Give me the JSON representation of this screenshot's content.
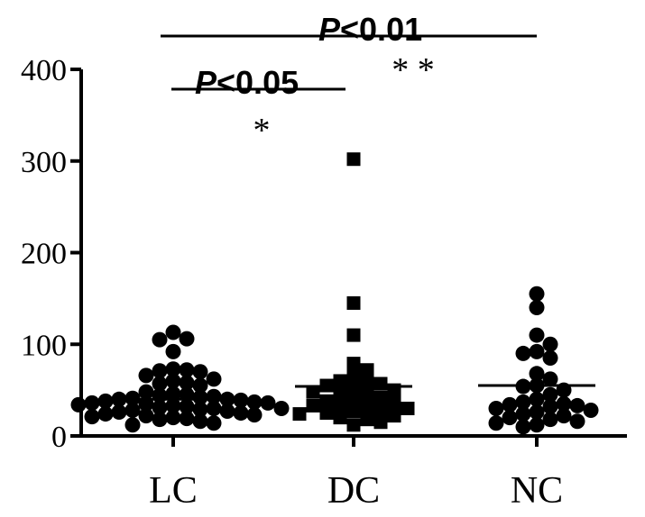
{
  "chart_data": {
    "type": "scatter",
    "title": "",
    "xlabel": "",
    "ylabel": "",
    "ylim": [
      0,
      400
    ],
    "yticks": [
      0,
      100,
      200,
      300,
      400
    ],
    "categories": [
      "LC",
      "DC",
      "NC"
    ],
    "grid": false,
    "legend": "none",
    "series": [
      {
        "category": "LC",
        "marker": "circle",
        "median": 40,
        "values": [
          113,
          105,
          106,
          92,
          72,
          70,
          73,
          71,
          66,
          62,
          58,
          57,
          60,
          55,
          48,
          46,
          45,
          44,
          43,
          42,
          41,
          40,
          40,
          39,
          38,
          37,
          36,
          36,
          35,
          34,
          33,
          32,
          31,
          30,
          30,
          29,
          28,
          27,
          26,
          25,
          24,
          23,
          22,
          21,
          20,
          19,
          18,
          16,
          14,
          12
        ]
      },
      {
        "category": "DC",
        "marker": "square",
        "median": 54,
        "values": [
          302,
          145,
          110,
          79,
          72,
          66,
          60,
          58,
          57,
          55,
          53,
          50,
          48,
          47,
          45,
          42,
          40,
          38,
          36,
          34,
          33,
          31,
          30,
          29,
          27,
          25,
          24,
          22,
          20,
          18,
          15,
          12
        ]
      },
      {
        "category": "NC",
        "marker": "circle",
        "median": 55,
        "values": [
          155,
          140,
          110,
          100,
          92,
          90,
          85,
          68,
          62,
          55,
          54,
          50,
          45,
          40,
          37,
          35,
          34,
          33,
          32,
          30,
          28,
          26,
          24,
          22,
          20,
          18,
          16,
          14,
          12,
          10
        ]
      }
    ],
    "comparisons": [
      {
        "from": "LC",
        "to": "DC",
        "label": "P<0.05",
        "p_letter": "P",
        "p_rest": "<0.05",
        "stars": "*"
      },
      {
        "from": "LC",
        "to": "NC",
        "label": "P<0.01",
        "p_letter": "P",
        "p_rest": "<0.01",
        "stars": "* *"
      }
    ]
  },
  "colors": {
    "ink": "#000000",
    "background": "#ffffff"
  }
}
